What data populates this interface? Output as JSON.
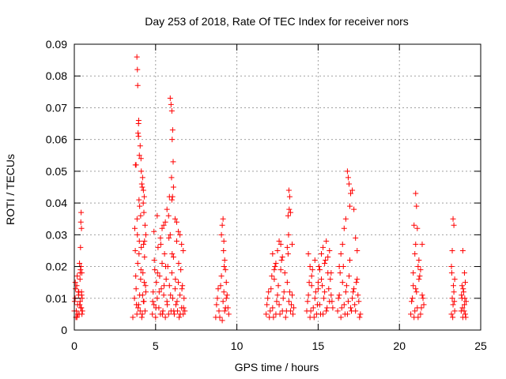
{
  "chart_data": {
    "type": "scatter",
    "title": "Day 253 of 2018, Rate Of TEC Index for receiver nors",
    "xlabel": "GPS time / hours",
    "ylabel": "ROTI / TECUs",
    "xlim": [
      0,
      25
    ],
    "ylim": [
      0,
      0.09
    ],
    "xticks": [
      "0",
      "5",
      "10",
      "15",
      "20",
      "25"
    ],
    "yticks": [
      "0",
      "0.01",
      "0.02",
      "0.03",
      "0.04",
      "0.05",
      "0.06",
      "0.07",
      "0.08",
      "0.09"
    ],
    "grid": true,
    "marker": "+",
    "color": "#ff0000",
    "series": [
      {
        "name": "ROTI",
        "x": [
          0.0,
          0.05,
          0.1,
          0.15,
          0.2,
          0.25,
          0.3,
          0.35,
          0.4,
          0.45,
          0.5,
          0.02,
          0.08,
          0.12,
          0.18,
          0.22,
          0.28,
          0.33,
          0.38,
          0.43,
          0.48,
          0.06,
          0.16,
          0.26,
          0.36,
          0.46,
          0.32,
          0.4,
          0.42,
          0.44,
          0.38,
          0.36,
          0.41,
          0.44,
          0.47,
          3.6,
          3.7,
          3.75,
          3.8,
          3.85,
          3.9,
          3.95,
          4.0,
          4.05,
          4.1,
          4.15,
          4.2,
          4.25,
          4.3,
          4.35,
          4.4,
          3.72,
          3.78,
          3.82,
          3.88,
          3.92,
          3.98,
          4.02,
          4.08,
          4.12,
          4.18,
          4.22,
          4.28,
          4.32,
          4.38,
          3.85,
          3.88,
          3.9,
          3.95,
          3.92,
          4.05,
          4.1,
          4.12,
          4.2,
          4.25,
          4.3,
          3.95,
          4.0,
          3.8,
          4.15,
          4.28,
          4.35,
          4.4,
          3.98,
          4.02,
          3.86,
          3.96,
          4.18,
          4.24,
          4.32,
          3.76,
          4.08,
          4.26,
          4.8,
          4.85,
          4.9,
          4.95,
          5.0,
          5.05,
          5.1,
          5.15,
          5.2,
          5.25,
          5.3,
          5.35,
          5.4,
          5.45,
          5.5,
          5.55,
          5.6,
          5.65,
          5.7,
          5.75,
          5.8,
          5.85,
          5.9,
          5.95,
          6.0,
          6.05,
          6.1,
          6.15,
          6.2,
          6.25,
          6.3,
          6.35,
          6.4,
          6.45,
          6.5,
          6.55,
          6.6,
          6.65,
          6.7,
          6.75,
          6.8,
          4.82,
          4.92,
          5.02,
          5.12,
          5.22,
          5.32,
          5.42,
          5.52,
          5.62,
          5.72,
          5.82,
          5.92,
          6.02,
          6.12,
          6.22,
          6.32,
          6.42,
          6.52,
          6.62,
          6.72,
          5.9,
          5.95,
          6.0,
          6.05,
          6.02,
          6.08,
          5.98,
          6.1,
          6.04,
          5.7,
          5.8,
          6.2,
          6.4,
          6.5,
          6.6,
          5.4,
          5.5,
          5.6,
          5.3,
          4.9,
          5.1,
          6.7,
          6.3,
          6.0,
          5.85,
          8.7,
          8.8,
          8.9,
          9.0,
          9.1,
          9.2,
          9.3,
          9.4,
          9.5,
          8.75,
          8.85,
          8.95,
          9.05,
          9.15,
          9.25,
          9.35,
          9.45,
          9.1,
          9.15,
          9.2,
          9.25,
          9.3,
          9.05,
          9.18,
          9.22,
          9.35,
          11.8,
          11.9,
          12.0,
          12.1,
          12.2,
          12.3,
          12.4,
          12.5,
          12.6,
          12.7,
          12.8,
          12.9,
          13.0,
          13.1,
          13.2,
          13.3,
          13.4,
          13.5,
          11.85,
          11.95,
          12.05,
          12.15,
          12.25,
          12.35,
          12.45,
          12.55,
          12.65,
          12.75,
          12.85,
          12.95,
          13.05,
          13.15,
          13.25,
          13.35,
          13.45,
          12.5,
          12.6,
          12.7,
          13.1,
          13.2,
          13.25,
          13.3,
          13.15,
          13.22,
          13.18,
          12.8,
          12.4,
          12.3,
          13.4,
          12.2,
          14.3,
          14.4,
          14.5,
          14.6,
          14.7,
          14.8,
          14.9,
          15.0,
          15.1,
          15.2,
          15.3,
          15.4,
          15.5,
          15.6,
          15.7,
          15.8,
          15.9,
          14.35,
          14.45,
          14.55,
          14.65,
          14.75,
          14.85,
          14.95,
          15.05,
          15.15,
          15.25,
          15.35,
          15.45,
          15.55,
          15.65,
          15.75,
          15.85,
          15.2,
          15.3,
          15.4,
          15.6,
          15.7,
          15.8,
          14.5,
          14.6,
          15.0,
          15.1,
          14.8,
          14.4,
          15.5,
          16.2,
          16.3,
          16.4,
          16.5,
          16.6,
          16.7,
          16.8,
          16.9,
          17.0,
          17.1,
          17.2,
          17.3,
          17.4,
          17.5,
          17.6,
          16.25,
          16.35,
          16.45,
          16.55,
          16.65,
          16.75,
          16.85,
          16.95,
          17.05,
          17.15,
          17.25,
          17.35,
          17.45,
          17.55,
          16.8,
          16.85,
          16.9,
          17.0,
          16.95,
          17.1,
          17.2,
          16.7,
          16.6,
          16.5,
          16.4,
          16.3,
          17.3,
          17.4,
          20.7,
          20.8,
          20.9,
          21.0,
          21.1,
          21.2,
          21.3,
          21.4,
          21.5,
          20.75,
          20.85,
          20.95,
          21.05,
          21.15,
          21.25,
          21.35,
          21.45,
          20.9,
          21.0,
          21.05,
          21.1,
          21.0,
          20.95,
          21.2,
          21.3,
          21.4,
          20.85,
          21.15,
          23.2,
          23.25,
          23.3,
          23.35,
          23.4,
          23.22,
          23.28,
          23.32,
          23.38,
          23.3,
          23.35,
          23.25,
          23.2,
          23.4,
          23.8,
          23.85,
          23.9,
          23.95,
          24.0,
          24.05,
          24.1,
          23.82,
          23.88,
          23.92,
          23.98,
          24.02,
          24.08,
          23.9,
          24.0,
          24.05,
          23.85
        ],
        "y": [
          0.006,
          0.01,
          0.004,
          0.014,
          0.008,
          0.012,
          0.005,
          0.016,
          0.007,
          0.011,
          0.006,
          0.009,
          0.013,
          0.006,
          0.017,
          0.005,
          0.012,
          0.008,
          0.019,
          0.007,
          0.01,
          0.015,
          0.004,
          0.011,
          0.009,
          0.018,
          0.021,
          0.034,
          0.037,
          0.032,
          0.026,
          0.018,
          0.02,
          0.012,
          0.005,
          0.004,
          0.01,
          0.025,
          0.013,
          0.005,
          0.021,
          0.008,
          0.028,
          0.006,
          0.019,
          0.004,
          0.011,
          0.009,
          0.015,
          0.006,
          0.012,
          0.032,
          0.017,
          0.008,
          0.03,
          0.007,
          0.024,
          0.011,
          0.016,
          0.026,
          0.005,
          0.018,
          0.009,
          0.023,
          0.014,
          0.086,
          0.082,
          0.077,
          0.065,
          0.062,
          0.058,
          0.054,
          0.05,
          0.048,
          0.044,
          0.042,
          0.061,
          0.055,
          0.052,
          0.046,
          0.037,
          0.033,
          0.03,
          0.041,
          0.039,
          0.035,
          0.066,
          0.045,
          0.04,
          0.028,
          0.052,
          0.036,
          0.027,
          0.005,
          0.012,
          0.008,
          0.019,
          0.004,
          0.015,
          0.01,
          0.026,
          0.007,
          0.017,
          0.005,
          0.013,
          0.021,
          0.006,
          0.011,
          0.024,
          0.004,
          0.016,
          0.009,
          0.02,
          0.005,
          0.014,
          0.03,
          0.006,
          0.018,
          0.01,
          0.023,
          0.005,
          0.013,
          0.008,
          0.028,
          0.006,
          0.015,
          0.004,
          0.011,
          0.019,
          0.007,
          0.014,
          0.005,
          0.01,
          0.006,
          0.009,
          0.022,
          0.007,
          0.018,
          0.012,
          0.027,
          0.005,
          0.014,
          0.02,
          0.008,
          0.029,
          0.011,
          0.024,
          0.006,
          0.016,
          0.009,
          0.021,
          0.005,
          0.013,
          0.007,
          0.073,
          0.071,
          0.069,
          0.063,
          0.06,
          0.053,
          0.048,
          0.045,
          0.042,
          0.038,
          0.036,
          0.035,
          0.031,
          0.03,
          0.027,
          0.032,
          0.033,
          0.034,
          0.029,
          0.031,
          0.036,
          0.025,
          0.034,
          0.041,
          0.042,
          0.004,
          0.01,
          0.006,
          0.014,
          0.003,
          0.012,
          0.007,
          0.011,
          0.005,
          0.008,
          0.013,
          0.004,
          0.017,
          0.009,
          0.006,
          0.01,
          0.007,
          0.033,
          0.035,
          0.028,
          0.022,
          0.019,
          0.03,
          0.025,
          0.02,
          0.015,
          0.005,
          0.01,
          0.004,
          0.013,
          0.007,
          0.016,
          0.005,
          0.011,
          0.008,
          0.019,
          0.006,
          0.012,
          0.004,
          0.015,
          0.009,
          0.006,
          0.011,
          0.007,
          0.008,
          0.012,
          0.006,
          0.017,
          0.004,
          0.02,
          0.009,
          0.014,
          0.005,
          0.022,
          0.01,
          0.018,
          0.006,
          0.024,
          0.012,
          0.008,
          0.005,
          0.025,
          0.028,
          0.027,
          0.026,
          0.044,
          0.042,
          0.037,
          0.036,
          0.038,
          0.03,
          0.023,
          0.021,
          0.019,
          0.027,
          0.024,
          0.006,
          0.011,
          0.004,
          0.014,
          0.007,
          0.01,
          0.005,
          0.013,
          0.008,
          0.016,
          0.005,
          0.012,
          0.006,
          0.018,
          0.009,
          0.011,
          0.007,
          0.009,
          0.015,
          0.006,
          0.019,
          0.004,
          0.012,
          0.008,
          0.02,
          0.005,
          0.014,
          0.01,
          0.022,
          0.007,
          0.013,
          0.016,
          0.009,
          0.024,
          0.026,
          0.021,
          0.023,
          0.025,
          0.018,
          0.02,
          0.017,
          0.015,
          0.019,
          0.022,
          0.024,
          0.028,
          0.006,
          0.011,
          0.004,
          0.015,
          0.008,
          0.012,
          0.005,
          0.017,
          0.007,
          0.01,
          0.013,
          0.006,
          0.016,
          0.009,
          0.005,
          0.01,
          0.018,
          0.007,
          0.02,
          0.005,
          0.014,
          0.009,
          0.022,
          0.006,
          0.012,
          0.008,
          0.015,
          0.011,
          0.004,
          0.05,
          0.048,
          0.046,
          0.043,
          0.039,
          0.044,
          0.038,
          0.035,
          0.032,
          0.027,
          0.024,
          0.02,
          0.029,
          0.025,
          0.005,
          0.01,
          0.004,
          0.013,
          0.007,
          0.016,
          0.005,
          0.011,
          0.008,
          0.009,
          0.014,
          0.006,
          0.012,
          0.004,
          0.017,
          0.007,
          0.01,
          0.033,
          0.043,
          0.039,
          0.032,
          0.027,
          0.024,
          0.022,
          0.019,
          0.027,
          0.018,
          0.02,
          0.005,
          0.01,
          0.008,
          0.012,
          0.006,
          0.018,
          0.004,
          0.014,
          0.009,
          0.035,
          0.033,
          0.025,
          0.02,
          0.016,
          0.006,
          0.01,
          0.004,
          0.012,
          0.008,
          0.005,
          0.009,
          0.011,
          0.007,
          0.013,
          0.006,
          0.01,
          0.004,
          0.025,
          0.018,
          0.015,
          0.014
        ]
      }
    ]
  }
}
